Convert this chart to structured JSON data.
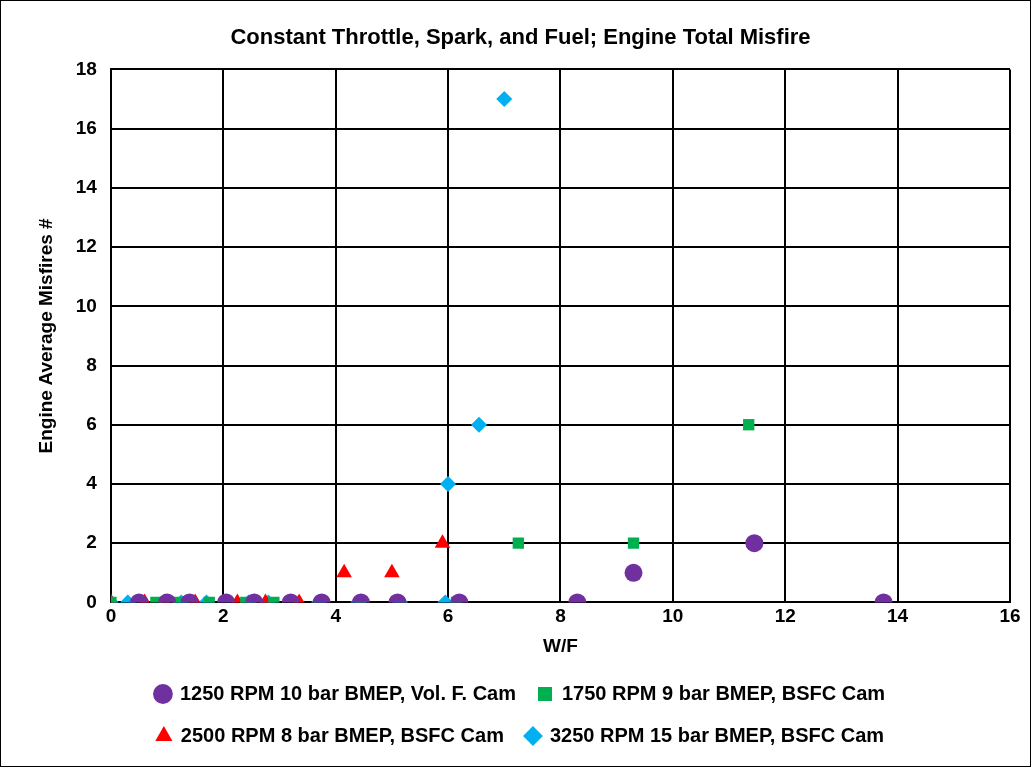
{
  "chart_data": {
    "type": "scatter",
    "title": "Constant Throttle, Spark, and Fuel; Engine Total Misfire",
    "xlabel": "W/F",
    "ylabel": "Engine Average Misfires #",
    "xlim": [
      0,
      16
    ],
    "xticks": [
      0,
      2,
      4,
      6,
      8,
      10,
      12,
      14,
      16
    ],
    "ylim": [
      0,
      18
    ],
    "yticks": [
      0,
      2,
      4,
      6,
      8,
      10,
      12,
      14,
      16,
      18
    ],
    "grid": true,
    "legend": "bottom",
    "series": [
      {
        "name": "1250 RPM 10 bar BMEP, Vol. F. Cam",
        "color": "#7030a0",
        "marker": "circle",
        "x": [
          0.5,
          1.0,
          1.4,
          2.05,
          2.55,
          3.2,
          3.75,
          4.45,
          5.1,
          6.2,
          8.3,
          9.3,
          11.45,
          13.75
        ],
        "values": [
          0,
          0,
          0,
          0,
          0,
          0,
          0,
          0,
          0,
          0,
          0,
          1,
          2,
          0
        ]
      },
      {
        "name": "1750 RPM 9 bar BMEP, BSFC Cam",
        "color": "#00b050",
        "marker": "square",
        "x": [
          0,
          0.8,
          1.2,
          1.75,
          2.4,
          2.9,
          4.45,
          6.15,
          7.25,
          9.3,
          11.35
        ],
        "values": [
          0,
          0,
          0,
          0,
          0,
          0,
          0,
          0,
          2,
          2,
          6
        ]
      },
      {
        "name": "2500 RPM 8 bar BMEP, BSFC Cam",
        "color": "#ff0000",
        "marker": "triangle",
        "x": [
          0,
          0.6,
          0.95,
          1.5,
          2.25,
          2.75,
          3.35,
          4.15,
          5.0,
          5.9
        ],
        "values": [
          0,
          0,
          0,
          0,
          0,
          0,
          0,
          1,
          1,
          2
        ]
      },
      {
        "name": "3250 RPM 15 bar BMEP, BSFC Cam",
        "color": "#00b0f0",
        "marker": "diamond",
        "x": [
          0,
          0.3,
          1.25,
          1.7,
          2.45,
          2.8,
          3.7,
          4.4,
          5.15,
          5.95,
          6.0,
          6.55,
          7.0
        ],
        "values": [
          0,
          0,
          0,
          0,
          0,
          0,
          0,
          0,
          0,
          0,
          4,
          6,
          17
        ]
      }
    ]
  }
}
